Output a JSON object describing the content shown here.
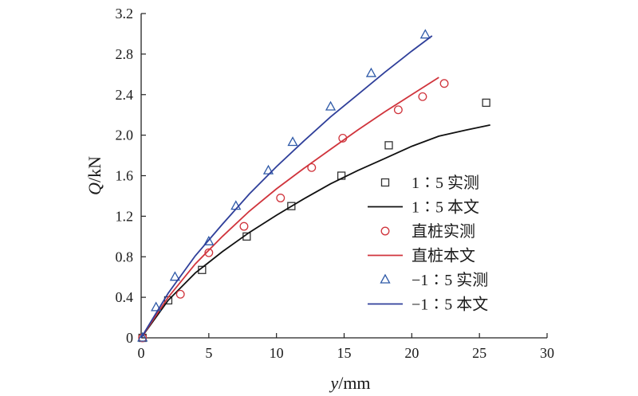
{
  "chart_data": {
    "type": "scatter",
    "xlabel": {
      "var": "y",
      "unit": "/mm"
    },
    "ylabel": {
      "var": "Q",
      "unit": "/kN"
    },
    "xlim": [
      0,
      30
    ],
    "ylim": [
      0,
      3.2
    ],
    "xticks": [
      "0",
      "5",
      "10",
      "15",
      "20",
      "25",
      "30"
    ],
    "yticks": [
      "0",
      "0.4",
      "0.8",
      "1.2",
      "1.6",
      "2.0",
      "2.4",
      "2.8",
      "3.2"
    ],
    "grid": false,
    "legend_position": "right",
    "series": [
      {
        "name": "1∶5 实测",
        "kind": "scatter",
        "marker": "square",
        "color": "#333333",
        "x": [
          0.1,
          2.0,
          4.5,
          7.8,
          11.1,
          14.8,
          18.3,
          25.5
        ],
        "y": [
          0.0,
          0.37,
          0.67,
          1.0,
          1.3,
          1.6,
          1.9,
          2.32
        ]
      },
      {
        "name": "1∶5 本文",
        "kind": "line",
        "color": "#111111",
        "x": [
          0,
          2,
          4,
          6,
          8,
          10,
          12,
          14,
          16,
          18,
          20,
          22,
          24,
          25.8
        ],
        "y": [
          0,
          0.37,
          0.64,
          0.85,
          1.04,
          1.21,
          1.37,
          1.52,
          1.65,
          1.77,
          1.89,
          1.99,
          2.05,
          2.1
        ]
      },
      {
        "name": "直桩实测",
        "kind": "scatter",
        "marker": "circle",
        "color": "#d0343c",
        "x": [
          0.1,
          2.9,
          5.0,
          7.6,
          10.3,
          12.6,
          14.9,
          19.0,
          20.8,
          22.4
        ],
        "y": [
          0.0,
          0.43,
          0.84,
          1.1,
          1.38,
          1.68,
          1.97,
          2.25,
          2.38,
          2.51
        ]
      },
      {
        "name": "直桩本文",
        "kind": "line",
        "color": "#d0343c",
        "x": [
          0,
          2,
          4,
          6,
          8,
          10,
          12,
          14,
          16,
          18,
          20,
          22
        ],
        "y": [
          0,
          0.4,
          0.73,
          1.0,
          1.25,
          1.47,
          1.67,
          1.86,
          2.05,
          2.23,
          2.4,
          2.57
        ]
      },
      {
        "name": "−1∶5 实测",
        "kind": "scatter",
        "marker": "triangle",
        "color": "#2f5aa8",
        "x": [
          0.1,
          1.1,
          2.5,
          5.0,
          7.0,
          9.4,
          11.2,
          14.0,
          17.0,
          21.0
        ],
        "y": [
          0.0,
          0.3,
          0.6,
          0.95,
          1.3,
          1.65,
          1.93,
          2.28,
          2.61,
          2.99
        ]
      },
      {
        "name": "−1∶5 本文",
        "kind": "line",
        "color": "#2f3f9a",
        "x": [
          0,
          2,
          4,
          6,
          8,
          10,
          12,
          14,
          16,
          18,
          20,
          21.5
        ],
        "y": [
          0,
          0.44,
          0.81,
          1.12,
          1.42,
          1.69,
          1.94,
          2.18,
          2.4,
          2.62,
          2.83,
          2.98
        ]
      }
    ]
  }
}
